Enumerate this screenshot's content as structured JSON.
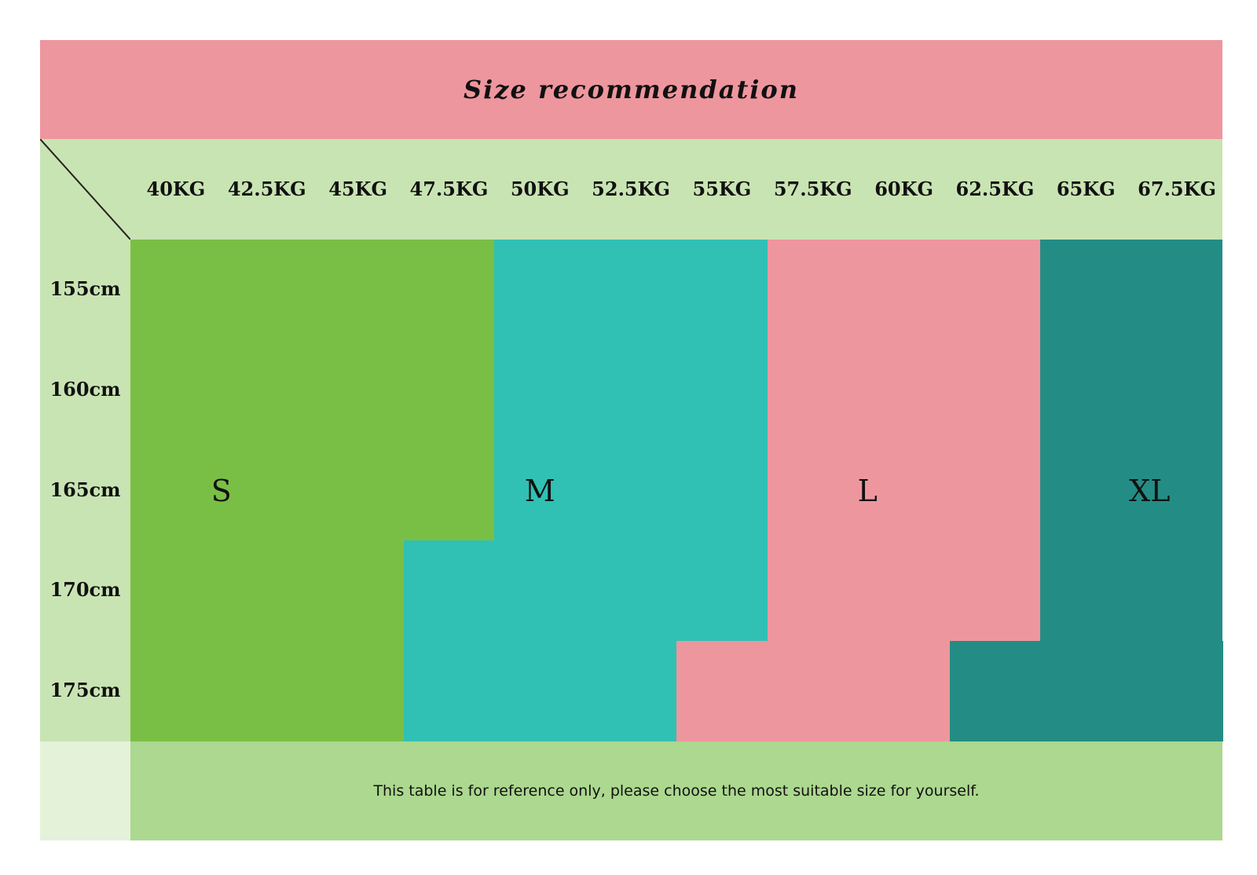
{
  "chart_data": {
    "type": "table",
    "title": "Size recommendation",
    "weights": [
      "40KG",
      "42.5KG",
      "45KG",
      "47.5KG",
      "50KG",
      "52.5KG",
      "55KG",
      "57.5KG",
      "60KG",
      "62.5KG",
      "65KG",
      "67.5KG"
    ],
    "heights": [
      "155cm",
      "160cm",
      "165cm",
      "170cm",
      "175cm"
    ],
    "sizes": [
      {
        "name": "S",
        "color": "#7abf45",
        "cols_per_row": [
          [
            0,
            3
          ],
          [
            0,
            3
          ],
          [
            0,
            3
          ],
          [
            0,
            2
          ],
          [
            0,
            2
          ]
        ]
      },
      {
        "name": "M",
        "color": "#31c0b4",
        "cols_per_row": [
          [
            4,
            6
          ],
          [
            4,
            6
          ],
          [
            4,
            6
          ],
          [
            3,
            6
          ],
          [
            3,
            5
          ]
        ]
      },
      {
        "name": "L",
        "color": "#ee969e",
        "cols_per_row": [
          [
            7,
            9
          ],
          [
            7,
            9
          ],
          [
            7,
            9
          ],
          [
            7,
            9
          ],
          [
            6,
            8
          ]
        ]
      },
      {
        "name": "XL",
        "color": "#238d85",
        "cols_per_row": [
          [
            10,
            11
          ],
          [
            10,
            11
          ],
          [
            10,
            11
          ],
          [
            10,
            11
          ],
          [
            9,
            11
          ]
        ]
      }
    ],
    "note": "This table is for reference only, please choose the most suitable size for yourself."
  },
  "colors": {
    "title_band": "#ee969e",
    "header_band": "#c9e4b3",
    "footer_band": "#acd88f",
    "footer_corner": "#e4f2da"
  }
}
